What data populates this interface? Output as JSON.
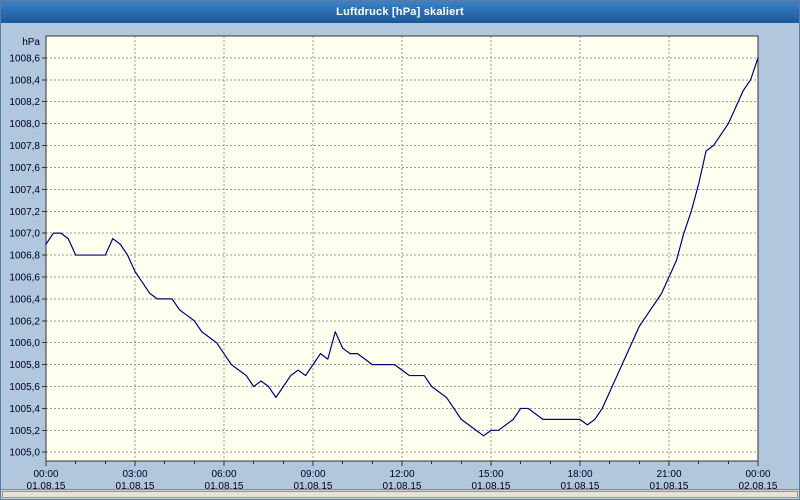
{
  "window": {
    "title": "Luftdruck [hPa] skaliert"
  },
  "colors": {
    "page_bg": "#b0c7de",
    "titlebar_top": "#3c82c4",
    "titlebar_bottom": "#1a5796",
    "title_text": "#ffffff",
    "plot_bg": "#fffff0",
    "grid": "#999999",
    "axis": "#333333",
    "tick_text": "#000020",
    "line": "#000080",
    "scrollbar_track": "#d4d0c8"
  },
  "chart_data": {
    "type": "line",
    "title": "Luftdruck [hPa] skaliert",
    "ylabel": "hPa",
    "xlabel": "",
    "x_unit": "hours",
    "xlim": [
      0,
      24
    ],
    "ylim": [
      1004.92,
      1008.8
    ],
    "grid": "dashed",
    "legend": "none",
    "y_ticks": [
      {
        "value": 1008.6,
        "label": "1008,6"
      },
      {
        "value": 1008.4,
        "label": "1008,4"
      },
      {
        "value": 1008.2,
        "label": "1008,2"
      },
      {
        "value": 1008.0,
        "label": "1008,0"
      },
      {
        "value": 1007.8,
        "label": "1007,8"
      },
      {
        "value": 1007.6,
        "label": "1007,6"
      },
      {
        "value": 1007.4,
        "label": "1007,4"
      },
      {
        "value": 1007.2,
        "label": "1007,2"
      },
      {
        "value": 1007.0,
        "label": "1007,0"
      },
      {
        "value": 1006.8,
        "label": "1006,8"
      },
      {
        "value": 1006.6,
        "label": "1006,6"
      },
      {
        "value": 1006.4,
        "label": "1006,4"
      },
      {
        "value": 1006.2,
        "label": "1006,2"
      },
      {
        "value": 1006.0,
        "label": "1006,0"
      },
      {
        "value": 1005.8,
        "label": "1005,8"
      },
      {
        "value": 1005.6,
        "label": "1005,6"
      },
      {
        "value": 1005.4,
        "label": "1005,4"
      },
      {
        "value": 1005.2,
        "label": "1005,2"
      },
      {
        "value": 1005.0,
        "label": "1005,0"
      }
    ],
    "x_ticks": [
      {
        "hours": 0,
        "time": "00:00",
        "date": "01.08.15"
      },
      {
        "hours": 3,
        "time": "03:00",
        "date": "01.08.15"
      },
      {
        "hours": 6,
        "time": "06:00",
        "date": "01.08.15"
      },
      {
        "hours": 9,
        "time": "09:00",
        "date": "01.08.15"
      },
      {
        "hours": 12,
        "time": "12:00",
        "date": "01.08.15"
      },
      {
        "hours": 15,
        "time": "15:00",
        "date": "01.08.15"
      },
      {
        "hours": 18,
        "time": "18:00",
        "date": "01.08.15"
      },
      {
        "hours": 21,
        "time": "21:00",
        "date": "01.08.15"
      },
      {
        "hours": 24,
        "time": "00:00",
        "date": "02.08.15"
      }
    ],
    "series": [
      {
        "name": "Luftdruck",
        "x": [
          0,
          0.25,
          0.5,
          0.75,
          1,
          1.25,
          1.5,
          1.75,
          2,
          2.25,
          2.5,
          2.75,
          3,
          3.25,
          3.5,
          3.75,
          4,
          4.25,
          4.5,
          4.75,
          5,
          5.25,
          5.5,
          5.75,
          6,
          6.25,
          6.5,
          6.75,
          7,
          7.25,
          7.5,
          7.75,
          8,
          8.25,
          8.5,
          8.75,
          9,
          9.25,
          9.5,
          9.75,
          10,
          10.25,
          10.5,
          10.75,
          11,
          11.25,
          11.5,
          11.75,
          12,
          12.25,
          12.5,
          12.75,
          13,
          13.25,
          13.5,
          13.75,
          14,
          14.25,
          14.5,
          14.75,
          15,
          15.25,
          15.5,
          15.75,
          16,
          16.25,
          16.5,
          16.75,
          17,
          17.25,
          17.5,
          17.75,
          18,
          18.25,
          18.5,
          18.75,
          19,
          19.25,
          19.5,
          19.75,
          20,
          20.25,
          20.5,
          20.75,
          21,
          21.25,
          21.5,
          21.75,
          22,
          22.25,
          22.5,
          22.75,
          23,
          23.25,
          23.5,
          23.75,
          24
        ],
        "y": [
          1006.9,
          1007.0,
          1007.0,
          1006.95,
          1006.8,
          1006.8,
          1006.8,
          1006.8,
          1006.8,
          1006.95,
          1006.9,
          1006.8,
          1006.65,
          1006.55,
          1006.45,
          1006.4,
          1006.4,
          1006.4,
          1006.3,
          1006.25,
          1006.2,
          1006.1,
          1006.05,
          1006.0,
          1005.9,
          1005.8,
          1005.75,
          1005.7,
          1005.6,
          1005.65,
          1005.6,
          1005.5,
          1005.6,
          1005.7,
          1005.75,
          1005.7,
          1005.8,
          1005.9,
          1005.85,
          1006.1,
          1005.95,
          1005.9,
          1005.9,
          1005.85,
          1005.8,
          1005.8,
          1005.8,
          1005.8,
          1005.75,
          1005.7,
          1005.7,
          1005.7,
          1005.6,
          1005.55,
          1005.5,
          1005.4,
          1005.3,
          1005.25,
          1005.2,
          1005.15,
          1005.2,
          1005.2,
          1005.25,
          1005.3,
          1005.4,
          1005.4,
          1005.35,
          1005.3,
          1005.3,
          1005.3,
          1005.3,
          1005.3,
          1005.3,
          1005.25,
          1005.3,
          1005.4,
          1005.55,
          1005.7,
          1005.85,
          1006.0,
          1006.15,
          1006.25,
          1006.35,
          1006.45,
          1006.6,
          1006.75,
          1007.0,
          1007.2,
          1007.45,
          1007.75,
          1007.8,
          1007.9,
          1008.0,
          1008.15,
          1008.3,
          1008.4,
          1008.6
        ]
      }
    ]
  }
}
